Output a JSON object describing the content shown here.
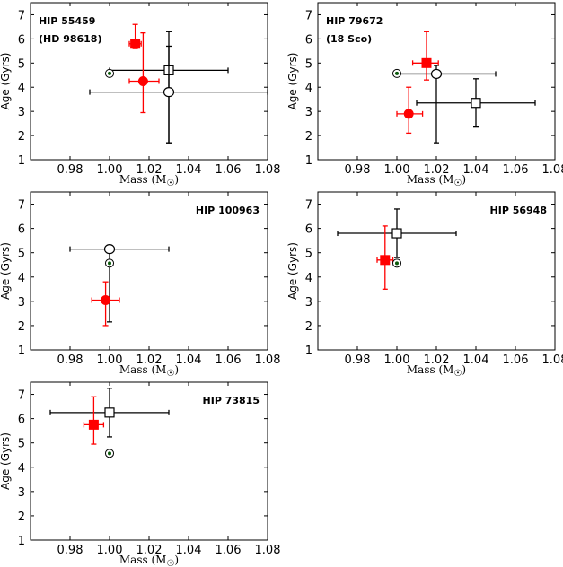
{
  "chart_data": [
    {
      "type": "scatter",
      "star": "HIP 55459",
      "alt_name": "(HD 98618)",
      "xlabel": "Mass (M",
      "xlabel_sub": "☉",
      "ylabel": "Age (Gyrs)",
      "xlim": [
        0.96,
        1.08
      ],
      "ylim": [
        1,
        7.5
      ],
      "xticks": [
        "0.98",
        "1.00",
        "1.02",
        "1.04",
        "1.06",
        "1.08"
      ],
      "yticks": [
        "1",
        "2",
        "3",
        "4",
        "5",
        "6",
        "7"
      ],
      "sun": {
        "x": 1.0,
        "y": 4.57
      },
      "points": [
        {
          "marker": "open-square",
          "color": "#000000",
          "x": 1.03,
          "y": 4.7,
          "xerr": [
            0.03,
            0.03
          ],
          "yerr": [
            3.0,
            1.6
          ]
        },
        {
          "marker": "open-circle",
          "color": "#000000",
          "x": 1.03,
          "y": 3.8,
          "xerr": [
            0.04,
            0.05
          ],
          "yerr": [
            2.1,
            1.9
          ]
        },
        {
          "marker": "filled-square",
          "color": "#ff0000",
          "x": 1.013,
          "y": 5.8,
          "xerr": [
            0.003,
            0.003
          ],
          "yerr": [
            0.2,
            0.8
          ]
        },
        {
          "marker": "filled-circle",
          "color": "#ff0000",
          "x": 1.017,
          "y": 4.25,
          "xerr": [
            0.007,
            0.008
          ],
          "yerr": [
            1.3,
            2.0
          ]
        }
      ]
    },
    {
      "type": "scatter",
      "star": "HIP 79672",
      "alt_name": "(18 Sco)",
      "xlabel": "Mass (M",
      "xlabel_sub": "☉",
      "ylabel": "Age (Gyrs)",
      "xlim": [
        0.96,
        1.08
      ],
      "ylim": [
        1,
        7.5
      ],
      "xticks": [
        "0.98",
        "1.00",
        "1.02",
        "1.04",
        "1.06",
        "1.08"
      ],
      "yticks": [
        "1",
        "2",
        "3",
        "4",
        "5",
        "6",
        "7"
      ],
      "sun": {
        "x": 1.0,
        "y": 4.57
      },
      "points": [
        {
          "marker": "open-square",
          "color": "#000000",
          "x": 1.04,
          "y": 3.35,
          "xerr": [
            0.03,
            0.03
          ],
          "yerr": [
            1.0,
            1.0
          ]
        },
        {
          "marker": "open-circle",
          "color": "#000000",
          "x": 1.02,
          "y": 4.55,
          "xerr": [
            0.02,
            0.03
          ],
          "yerr": [
            2.85,
            0.35
          ]
        },
        {
          "marker": "filled-square",
          "color": "#ff0000",
          "x": 1.015,
          "y": 5.0,
          "xerr": [
            0.007,
            0.006
          ],
          "yerr": [
            0.7,
            1.3
          ]
        },
        {
          "marker": "filled-circle",
          "color": "#ff0000",
          "x": 1.006,
          "y": 2.9,
          "xerr": [
            0.006,
            0.007
          ],
          "yerr": [
            0.8,
            1.1
          ]
        }
      ]
    },
    {
      "type": "scatter",
      "star": "HIP 100963",
      "alt_name": "",
      "xlabel": "Mass (M",
      "xlabel_sub": "☉",
      "ylabel": "Age (Gyrs)",
      "xlim": [
        0.96,
        1.08
      ],
      "ylim": [
        1,
        7.5
      ],
      "xticks": [
        "0.98",
        "1.00",
        "1.02",
        "1.04",
        "1.06",
        "1.08"
      ],
      "yticks": [
        "1",
        "2",
        "3",
        "4",
        "5",
        "6",
        "7"
      ],
      "sun": {
        "x": 1.0,
        "y": 4.57
      },
      "points": [
        {
          "marker": "open-circle",
          "color": "#000000",
          "x": 1.0,
          "y": 5.15,
          "xerr": [
            0.02,
            0.03
          ],
          "yerr": [
            3.0,
            0.0
          ]
        },
        {
          "marker": "filled-circle",
          "color": "#ff0000",
          "x": 0.998,
          "y": 3.05,
          "xerr": [
            0.007,
            0.007
          ],
          "yerr": [
            1.05,
            0.75
          ]
        }
      ]
    },
    {
      "type": "scatter",
      "star": "HIP 56948",
      "alt_name": "",
      "xlabel": "Mass (M",
      "xlabel_sub": "☉",
      "ylabel": "Age (Gyrs)",
      "xlim": [
        0.96,
        1.08
      ],
      "ylim": [
        1,
        7.5
      ],
      "xticks": [
        "0.98",
        "1.00",
        "1.02",
        "1.04",
        "1.06",
        "1.08"
      ],
      "yticks": [
        "1",
        "2",
        "3",
        "4",
        "5",
        "6",
        "7"
      ],
      "sun": {
        "x": 1.0,
        "y": 4.57
      },
      "points": [
        {
          "marker": "open-square",
          "color": "#000000",
          "x": 1.0,
          "y": 5.8,
          "xerr": [
            0.03,
            0.03
          ],
          "yerr": [
            1.0,
            1.0
          ]
        },
        {
          "marker": "filled-square",
          "color": "#ff0000",
          "x": 0.994,
          "y": 4.7,
          "xerr": [
            0.004,
            0.004
          ],
          "yerr": [
            1.2,
            1.4
          ]
        }
      ]
    },
    {
      "type": "scatter",
      "star": "HIP 73815",
      "alt_name": "",
      "xlabel": "Mass (M",
      "xlabel_sub": "☉",
      "ylabel": "Age (Gyrs)",
      "xlim": [
        0.96,
        1.08
      ],
      "ylim": [
        1,
        7.5
      ],
      "xticks": [
        "0.98",
        "1.00",
        "1.02",
        "1.04",
        "1.06",
        "1.08"
      ],
      "yticks": [
        "1",
        "2",
        "3",
        "4",
        "5",
        "6",
        "7"
      ],
      "sun": {
        "x": 1.0,
        "y": 4.57
      },
      "points": [
        {
          "marker": "open-square",
          "color": "#000000",
          "x": 1.0,
          "y": 6.25,
          "xerr": [
            0.03,
            0.03
          ],
          "yerr": [
            1.0,
            1.0
          ]
        },
        {
          "marker": "filled-square",
          "color": "#ff0000",
          "x": 0.992,
          "y": 5.75,
          "xerr": [
            0.005,
            0.005
          ],
          "yerr": [
            0.8,
            1.15
          ]
        }
      ]
    }
  ]
}
